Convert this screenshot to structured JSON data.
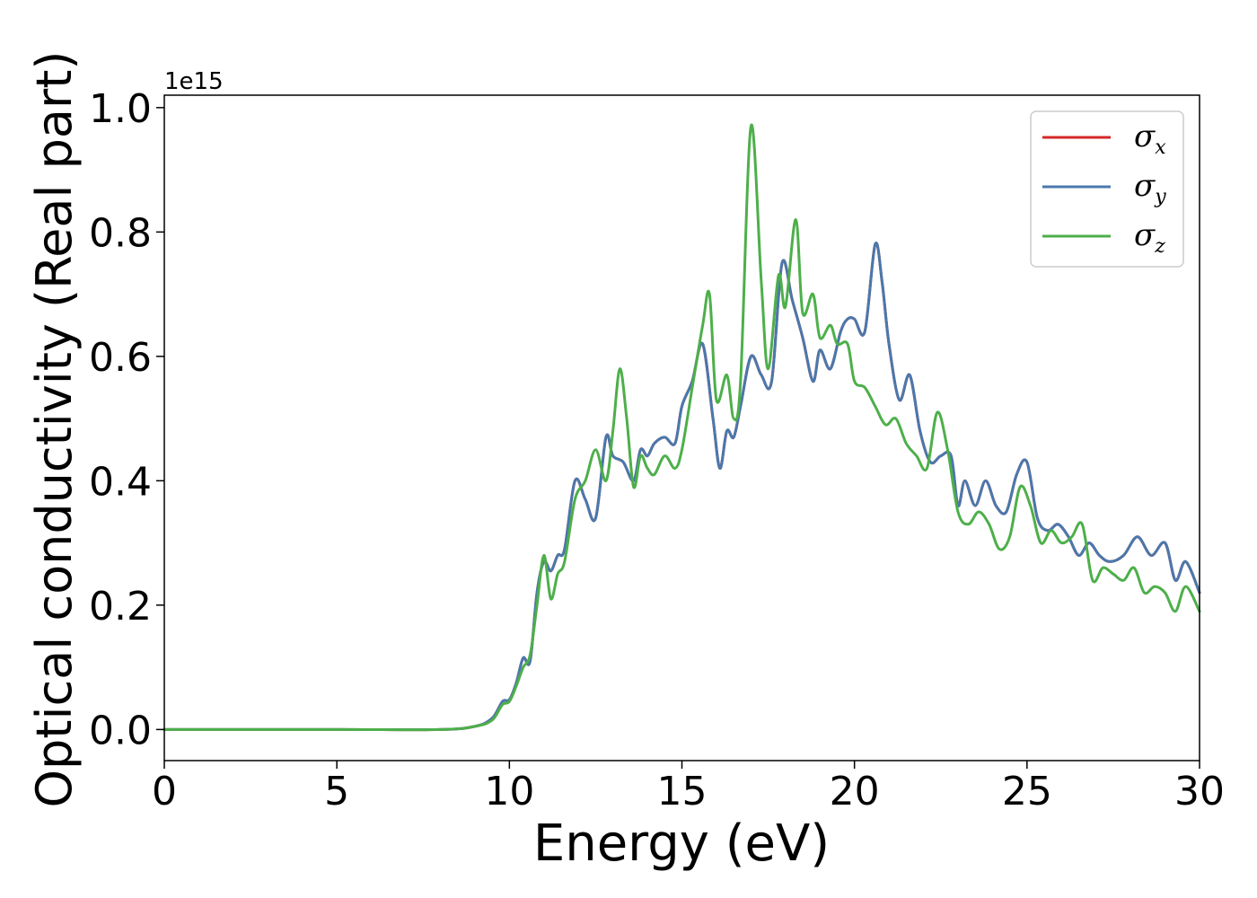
{
  "chart_data": {
    "type": "line",
    "xlabel": "Energy (eV)",
    "ylabel": "Optical conductivity (Real part)",
    "y_offset_text": "1e15",
    "xlim": [
      0,
      30
    ],
    "ylim": [
      -0.05,
      1.02
    ],
    "y_scale": 1000000000000000.0,
    "xticks": [
      0,
      5,
      10,
      15,
      20,
      25,
      30
    ],
    "xtick_labels": [
      "0",
      "5",
      "10",
      "15",
      "20",
      "25",
      "30"
    ],
    "yticks": [
      0.0,
      0.2,
      0.4,
      0.6,
      0.8,
      1.0
    ],
    "ytick_labels": [
      "0.0",
      "0.2",
      "0.4",
      "0.6",
      "0.8",
      "1.0"
    ],
    "grid": false,
    "legend_position": "top-right",
    "series": [
      {
        "name": "σx",
        "legend_symbol": "σ",
        "legend_subscript": "x",
        "color": "#d62728",
        "x": [
          0,
          5,
          8,
          9,
          9.5,
          9.8,
          10.0,
          10.2,
          10.4,
          10.6,
          10.8,
          11.0,
          11.2,
          11.4,
          11.6,
          11.9,
          12.2,
          12.5,
          12.8,
          13.0,
          13.3,
          13.6,
          13.8,
          14.0,
          14.2,
          14.5,
          14.8,
          15.0,
          15.3,
          15.6,
          15.9,
          16.1,
          16.3,
          16.5,
          16.7,
          17.0,
          17.3,
          17.6,
          17.9,
          18.2,
          18.5,
          18.8,
          19.0,
          19.3,
          19.6,
          19.8,
          20.0,
          20.3,
          20.6,
          20.8,
          21.0,
          21.3,
          21.6,
          21.9,
          22.2,
          22.5,
          22.8,
          23.0,
          23.2,
          23.5,
          23.8,
          24.1,
          24.4,
          24.7,
          25.0,
          25.3,
          25.6,
          25.9,
          26.2,
          26.5,
          26.8,
          27.1,
          27.4,
          27.8,
          28.2,
          28.6,
          29.0,
          29.3,
          29.6,
          30.0
        ],
        "values": [
          0,
          0,
          0.0,
          0.005,
          0.018,
          0.045,
          0.048,
          0.075,
          0.115,
          0.11,
          0.22,
          0.27,
          0.255,
          0.28,
          0.29,
          0.4,
          0.37,
          0.34,
          0.47,
          0.44,
          0.43,
          0.4,
          0.45,
          0.44,
          0.46,
          0.47,
          0.46,
          0.52,
          0.56,
          0.62,
          0.5,
          0.42,
          0.48,
          0.47,
          0.52,
          0.6,
          0.57,
          0.56,
          0.75,
          0.69,
          0.63,
          0.56,
          0.61,
          0.58,
          0.64,
          0.66,
          0.66,
          0.64,
          0.78,
          0.72,
          0.62,
          0.53,
          0.57,
          0.48,
          0.43,
          0.44,
          0.44,
          0.36,
          0.4,
          0.36,
          0.4,
          0.36,
          0.35,
          0.41,
          0.43,
          0.34,
          0.32,
          0.33,
          0.31,
          0.28,
          0.3,
          0.28,
          0.27,
          0.28,
          0.31,
          0.28,
          0.3,
          0.24,
          0.27,
          0.22
        ]
      },
      {
        "name": "σy",
        "legend_symbol": "σ",
        "legend_subscript": "y",
        "color": "#4a78ac",
        "x": [
          0,
          5,
          8,
          9,
          9.5,
          9.8,
          10.0,
          10.2,
          10.4,
          10.6,
          10.8,
          11.0,
          11.2,
          11.4,
          11.6,
          11.9,
          12.2,
          12.5,
          12.8,
          13.0,
          13.3,
          13.6,
          13.8,
          14.0,
          14.2,
          14.5,
          14.8,
          15.0,
          15.3,
          15.6,
          15.9,
          16.1,
          16.3,
          16.5,
          16.7,
          17.0,
          17.3,
          17.6,
          17.9,
          18.2,
          18.5,
          18.8,
          19.0,
          19.3,
          19.6,
          19.8,
          20.0,
          20.3,
          20.6,
          20.8,
          21.0,
          21.3,
          21.6,
          21.9,
          22.2,
          22.5,
          22.8,
          23.0,
          23.2,
          23.5,
          23.8,
          24.1,
          24.4,
          24.7,
          25.0,
          25.3,
          25.6,
          25.9,
          26.2,
          26.5,
          26.8,
          27.1,
          27.4,
          27.8,
          28.2,
          28.6,
          29.0,
          29.3,
          29.6,
          30.0
        ],
        "values": [
          0,
          0,
          0.0,
          0.005,
          0.018,
          0.045,
          0.048,
          0.075,
          0.115,
          0.11,
          0.22,
          0.27,
          0.255,
          0.28,
          0.29,
          0.4,
          0.37,
          0.34,
          0.47,
          0.44,
          0.43,
          0.4,
          0.45,
          0.44,
          0.46,
          0.47,
          0.46,
          0.52,
          0.56,
          0.62,
          0.5,
          0.42,
          0.48,
          0.47,
          0.52,
          0.6,
          0.57,
          0.56,
          0.75,
          0.69,
          0.63,
          0.56,
          0.61,
          0.58,
          0.64,
          0.66,
          0.66,
          0.64,
          0.78,
          0.72,
          0.62,
          0.53,
          0.57,
          0.48,
          0.43,
          0.44,
          0.44,
          0.36,
          0.4,
          0.36,
          0.4,
          0.36,
          0.35,
          0.41,
          0.43,
          0.34,
          0.32,
          0.33,
          0.31,
          0.28,
          0.3,
          0.28,
          0.27,
          0.28,
          0.31,
          0.28,
          0.3,
          0.24,
          0.27,
          0.22
        ]
      },
      {
        "name": "σz",
        "legend_symbol": "σ",
        "legend_subscript": "z",
        "color": "#4daf4a",
        "x": [
          0,
          5,
          8,
          9,
          9.5,
          9.8,
          10.0,
          10.2,
          10.4,
          10.6,
          10.8,
          11.0,
          11.2,
          11.4,
          11.6,
          11.9,
          12.2,
          12.5,
          12.8,
          13.0,
          13.2,
          13.4,
          13.6,
          13.8,
          14.0,
          14.2,
          14.5,
          14.8,
          15.0,
          15.3,
          15.6,
          15.8,
          16.0,
          16.3,
          16.5,
          16.7,
          17.0,
          17.3,
          17.5,
          17.8,
          18.0,
          18.3,
          18.5,
          18.8,
          19.0,
          19.3,
          19.5,
          19.8,
          20.0,
          20.3,
          20.6,
          20.9,
          21.2,
          21.5,
          21.8,
          22.1,
          22.4,
          22.7,
          23.0,
          23.3,
          23.6,
          23.9,
          24.2,
          24.5,
          24.8,
          25.1,
          25.4,
          25.7,
          26.0,
          26.3,
          26.6,
          26.9,
          27.2,
          27.5,
          27.8,
          28.1,
          28.4,
          28.7,
          29.0,
          29.3,
          29.6,
          30.0
        ],
        "values": [
          0,
          0,
          0.0,
          0.005,
          0.015,
          0.04,
          0.045,
          0.07,
          0.1,
          0.12,
          0.2,
          0.28,
          0.21,
          0.25,
          0.27,
          0.37,
          0.4,
          0.45,
          0.4,
          0.48,
          0.58,
          0.5,
          0.39,
          0.44,
          0.42,
          0.41,
          0.44,
          0.42,
          0.45,
          0.55,
          0.65,
          0.7,
          0.53,
          0.57,
          0.5,
          0.56,
          0.97,
          0.72,
          0.58,
          0.73,
          0.68,
          0.82,
          0.67,
          0.7,
          0.63,
          0.65,
          0.62,
          0.62,
          0.56,
          0.55,
          0.52,
          0.49,
          0.5,
          0.46,
          0.44,
          0.42,
          0.51,
          0.45,
          0.35,
          0.33,
          0.35,
          0.33,
          0.29,
          0.31,
          0.39,
          0.36,
          0.3,
          0.32,
          0.3,
          0.31,
          0.33,
          0.24,
          0.26,
          0.25,
          0.24,
          0.26,
          0.22,
          0.23,
          0.22,
          0.19,
          0.23,
          0.19
        ]
      }
    ]
  }
}
